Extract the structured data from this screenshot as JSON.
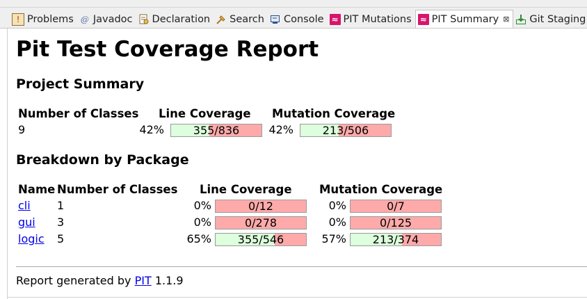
{
  "tabs": [
    {
      "label": "Problems",
      "icon": "problems-icon"
    },
    {
      "label": "Javadoc",
      "icon": "javadoc-icon"
    },
    {
      "label": "Declaration",
      "icon": "declaration-icon"
    },
    {
      "label": "Search",
      "icon": "search-icon"
    },
    {
      "label": "Console",
      "icon": "console-icon"
    },
    {
      "label": "PIT Mutations",
      "icon": "pit-icon"
    },
    {
      "label": "PIT Summary",
      "icon": "pit-icon",
      "active": true
    },
    {
      "label": "Git Staging",
      "icon": "git-staging-icon"
    }
  ],
  "report": {
    "title": "Pit Test Coverage Report",
    "project_summary": {
      "heading": "Project Summary",
      "headers": {
        "classes": "Number of Classes",
        "line": "Line Coverage",
        "mutation": "Mutation Coverage"
      },
      "row": {
        "classes": "9",
        "line_pct": "42%",
        "line_label": "355/836",
        "line_fraction": 0.4246,
        "mutation_pct": "42%",
        "mutation_label": "213/506",
        "mutation_fraction": 0.4209
      }
    },
    "breakdown": {
      "heading": "Breakdown by Package",
      "headers": {
        "name": "Name",
        "classes": "Number of Classes",
        "line": "Line Coverage",
        "mutation": "Mutation Coverage"
      },
      "rows": [
        {
          "name": "cli",
          "classes": "1",
          "line_pct": "0%",
          "line_label": "0/12",
          "line_fraction": 0,
          "mutation_pct": "0%",
          "mutation_label": "0/7",
          "mutation_fraction": 0
        },
        {
          "name": "gui",
          "classes": "3",
          "line_pct": "0%",
          "line_label": "0/278",
          "line_fraction": 0,
          "mutation_pct": "0%",
          "mutation_label": "0/125",
          "mutation_fraction": 0
        },
        {
          "name": "logic",
          "classes": "5",
          "line_pct": "65%",
          "line_label": "355/546",
          "line_fraction": 0.6502,
          "mutation_pct": "57%",
          "mutation_label": "213/374",
          "mutation_fraction": 0.5695
        }
      ]
    },
    "footer": {
      "prefix": "Report generated by",
      "link": "PIT",
      "version": "1.1.9"
    }
  },
  "colors": {
    "covered": "#ddffdd",
    "uncovered": "#ffaaaa",
    "link": "#0000ee",
    "pit_icon": "#d6156c"
  }
}
